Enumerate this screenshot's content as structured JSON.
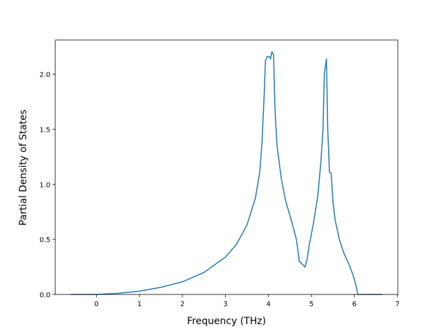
{
  "chart_data": {
    "type": "line",
    "xlabel": "Frequency (THz)",
    "ylabel": "Partial Density of States",
    "x": [
      -0.6,
      0,
      0.5,
      1,
      1.5,
      2,
      2.5,
      3,
      3.25,
      3.5,
      3.7,
      3.8,
      3.85,
      3.9,
      3.93,
      3.97,
      4.02,
      4.05,
      4.08,
      4.12,
      4.15,
      4.2,
      4.3,
      4.4,
      4.55,
      4.65,
      4.72,
      4.8,
      4.85,
      4.9,
      4.95,
      5.05,
      5.15,
      5.22,
      5.27,
      5.3,
      5.35,
      5.38,
      5.42,
      5.46,
      5.5,
      5.55,
      5.65,
      5.75,
      5.9,
      6.0,
      6.05,
      6.08,
      6.3,
      6.65
    ],
    "series": [
      {
        "color": "#1f77b4",
        "values": [
          0,
          0,
          0.01,
          0.03,
          0.065,
          0.115,
          0.2,
          0.34,
          0.45,
          0.63,
          0.88,
          1.12,
          1.38,
          1.8,
          2.12,
          2.16,
          2.16,
          2.14,
          2.2,
          2.18,
          1.7,
          1.35,
          1.05,
          0.85,
          0.65,
          0.5,
          0.3,
          0.27,
          0.25,
          0.32,
          0.45,
          0.65,
          0.9,
          1.2,
          1.5,
          2.0,
          2.14,
          1.5,
          1.11,
          1.1,
          0.85,
          0.68,
          0.5,
          0.38,
          0.25,
          0.14,
          0.06,
          0,
          0,
          0
        ]
      }
    ],
    "xlim": [
      -0.96,
      7.01
    ],
    "xticks": [
      0,
      1,
      2,
      3,
      4,
      5,
      6,
      7
    ],
    "ylim": [
      0,
      2.31
    ],
    "yticks": [
      {
        "value": 0,
        "label": "0.0"
      },
      {
        "value": 0.5,
        "label": "0.5"
      },
      {
        "value": 1,
        "label": "1.0"
      },
      {
        "value": 1.5,
        "label": "1.5"
      },
      {
        "value": 2,
        "label": "2.0"
      }
    ],
    "grid": false
  }
}
